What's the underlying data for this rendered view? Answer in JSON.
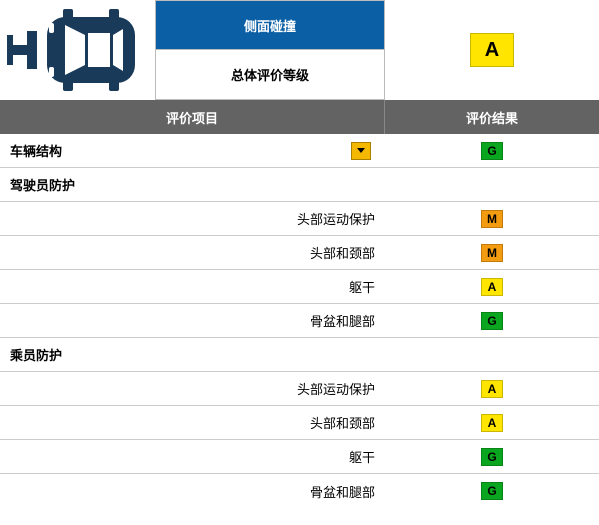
{
  "header": {
    "test_name": "侧面碰撞",
    "overall_label": "总体评价等级",
    "overall_grade": "A",
    "col_item": "评价项目",
    "col_result": "评价结果"
  },
  "grade_colors": {
    "G": {
      "bg": "#0aa61f",
      "fg": "#000000"
    },
    "A": {
      "bg": "#ffe500",
      "fg": "#000000"
    },
    "M": {
      "bg": "#f39c12",
      "fg": "#000000"
    },
    "P": {
      "bg": "#d8232a",
      "fg": "#ffffff"
    }
  },
  "rows": [
    {
      "type": "item",
      "label": "车辆结构",
      "align": "left",
      "bold": true,
      "grade": "G",
      "dropdown": true
    },
    {
      "type": "section",
      "label": "驾驶员防护"
    },
    {
      "type": "item",
      "label": "头部运动保护",
      "align": "right",
      "grade": "M"
    },
    {
      "type": "item",
      "label": "头部和颈部",
      "align": "right",
      "grade": "M"
    },
    {
      "type": "item",
      "label": "躯干",
      "align": "right",
      "grade": "A"
    },
    {
      "type": "item",
      "label": "骨盆和腿部",
      "align": "right",
      "grade": "G"
    },
    {
      "type": "section",
      "label": "乘员防护"
    },
    {
      "type": "item",
      "label": "头部运动保护",
      "align": "right",
      "grade": "A"
    },
    {
      "type": "item",
      "label": "头部和颈部",
      "align": "right",
      "grade": "A"
    },
    {
      "type": "item",
      "label": "躯干",
      "align": "right",
      "grade": "G"
    },
    {
      "type": "item",
      "label": "骨盆和腿部",
      "align": "right",
      "grade": "G"
    }
  ]
}
